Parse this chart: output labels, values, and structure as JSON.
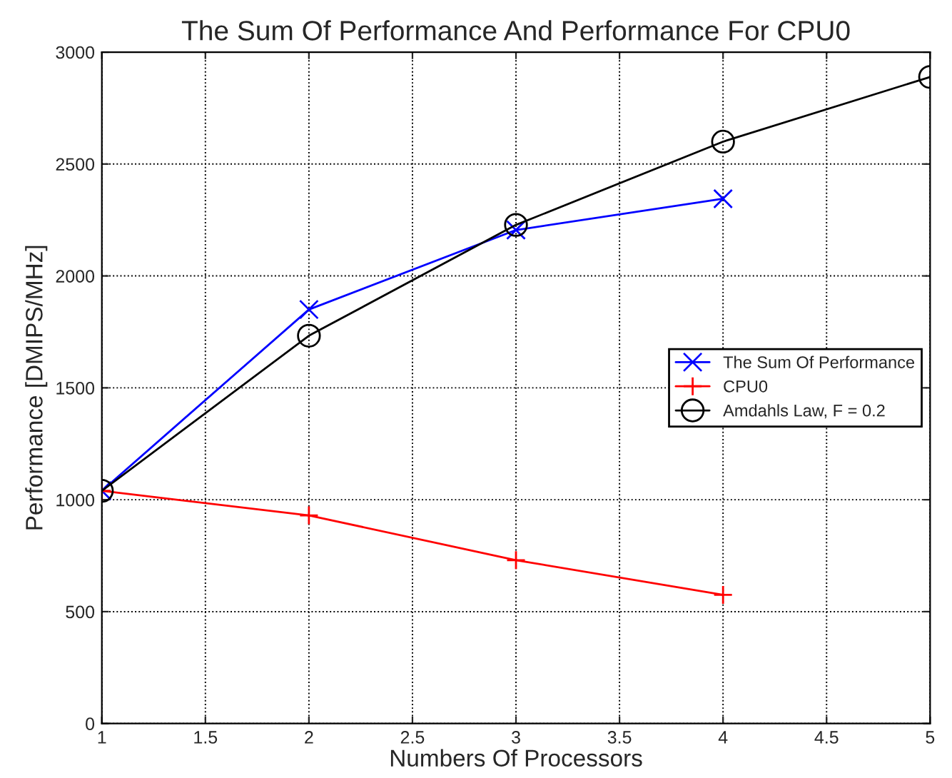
{
  "chart_data": {
    "type": "line",
    "title": "The Sum Of Performance And Performance For CPU0",
    "xlabel": "Numbers Of Processors",
    "ylabel": "Performance [DMIPS/MHz]",
    "x": [
      1,
      2,
      3,
      4,
      5
    ],
    "series": [
      {
        "name": "The Sum Of Performance",
        "color": "#0000ff",
        "marker": "cross",
        "values": [
          1040,
          1850,
          2205,
          2345,
          null
        ]
      },
      {
        "name": "CPU0",
        "color": "#ff0000",
        "marker": "plus",
        "values": [
          1040,
          930,
          730,
          575,
          null
        ]
      },
      {
        "name": "Amdahls Law, F = 0.2",
        "color": "#000000",
        "marker": "circle",
        "values": [
          1040,
          1733,
          2228,
          2600,
          2889
        ]
      }
    ],
    "xlim": [
      1,
      5
    ],
    "xticks": [
      1,
      1.5,
      2,
      2.5,
      3,
      3.5,
      4,
      4.5,
      5
    ],
    "ylim": [
      0,
      3000
    ],
    "yticks": [
      0,
      500,
      1000,
      1500,
      2000,
      2500,
      3000
    ],
    "grid": true,
    "legend": "right",
    "line_style": "solid"
  }
}
